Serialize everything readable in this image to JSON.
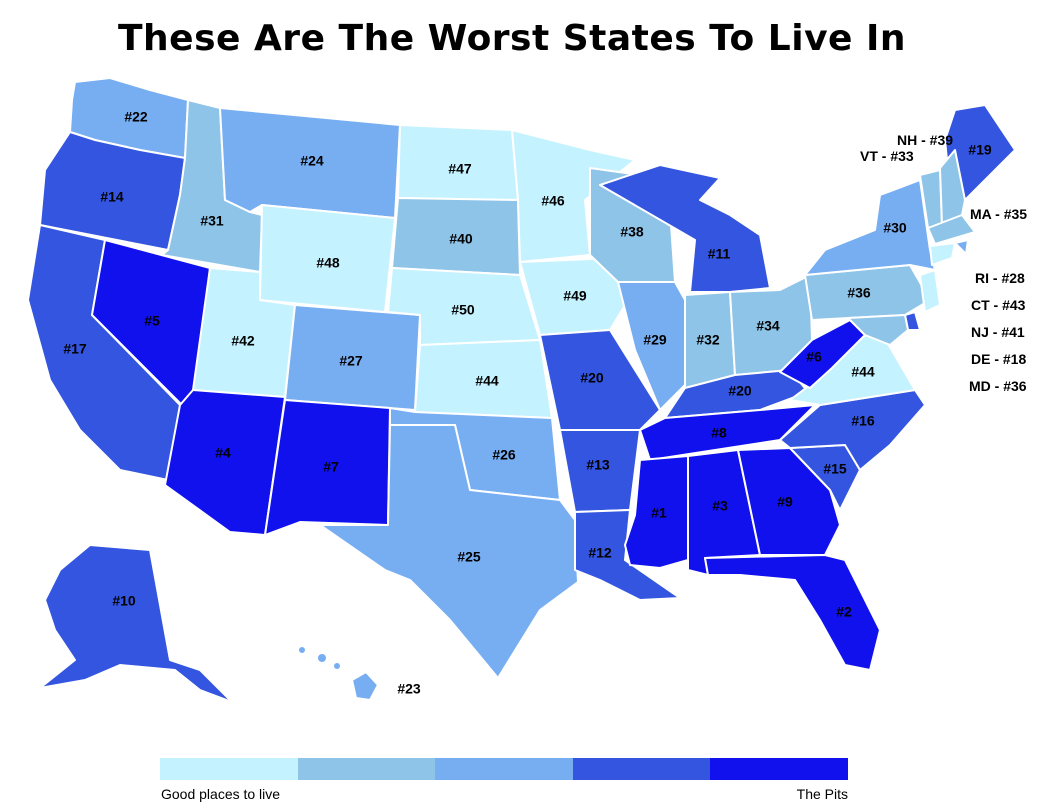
{
  "title": "These Are The Worst States To Live In",
  "colors": {
    "tier1": "#c4f2ff",
    "tier2": "#8ec4e8",
    "tier3": "#77aef2",
    "tier4": "#3355e0",
    "tier5": "#1111ee"
  },
  "states": [
    {
      "name": "WA",
      "rank": 22,
      "tier": 3
    },
    {
      "name": "OR",
      "rank": 14,
      "tier": 4
    },
    {
      "name": "CA",
      "rank": 17,
      "tier": 4
    },
    {
      "name": "NV",
      "rank": 5,
      "tier": 5
    },
    {
      "name": "ID",
      "rank": 31,
      "tier": 2
    },
    {
      "name": "MT",
      "rank": 24,
      "tier": 3
    },
    {
      "name": "WY",
      "rank": 48,
      "tier": 1
    },
    {
      "name": "UT",
      "rank": 42,
      "tier": 1
    },
    {
      "name": "AZ",
      "rank": 4,
      "tier": 5
    },
    {
      "name": "CO",
      "rank": 27,
      "tier": 3
    },
    {
      "name": "NM",
      "rank": 7,
      "tier": 5
    },
    {
      "name": "ND",
      "rank": 47,
      "tier": 1
    },
    {
      "name": "SD",
      "rank": 40,
      "tier": 2
    },
    {
      "name": "NE",
      "rank": 50,
      "tier": 1
    },
    {
      "name": "KS",
      "rank": 44,
      "tier": 1
    },
    {
      "name": "OK",
      "rank": 26,
      "tier": 3
    },
    {
      "name": "TX",
      "rank": 25,
      "tier": 3
    },
    {
      "name": "MN",
      "rank": 46,
      "tier": 1
    },
    {
      "name": "IA",
      "rank": 49,
      "tier": 1
    },
    {
      "name": "MO",
      "rank": 20,
      "tier": 4
    },
    {
      "name": "AR",
      "rank": 13,
      "tier": 4
    },
    {
      "name": "LA",
      "rank": 12,
      "tier": 4
    },
    {
      "name": "WI",
      "rank": 38,
      "tier": 2
    },
    {
      "name": "IL",
      "rank": 29,
      "tier": 3
    },
    {
      "name": "MI",
      "rank": 11,
      "tier": 4
    },
    {
      "name": "IN",
      "rank": 32,
      "tier": 2
    },
    {
      "name": "OH",
      "rank": 34,
      "tier": 2
    },
    {
      "name": "KY",
      "rank": 20,
      "tier": 4
    },
    {
      "name": "TN",
      "rank": 8,
      "tier": 5
    },
    {
      "name": "MS",
      "rank": 1,
      "tier": 5
    },
    {
      "name": "AL",
      "rank": 3,
      "tier": 5
    },
    {
      "name": "GA",
      "rank": 9,
      "tier": 5
    },
    {
      "name": "FL",
      "rank": 2,
      "tier": 5
    },
    {
      "name": "SC",
      "rank": 15,
      "tier": 4
    },
    {
      "name": "NC",
      "rank": 16,
      "tier": 4
    },
    {
      "name": "VA",
      "rank": 44,
      "tier": 1
    },
    {
      "name": "WV",
      "rank": 6,
      "tier": 5
    },
    {
      "name": "PA",
      "rank": 36,
      "tier": 2
    },
    {
      "name": "NY",
      "rank": 30,
      "tier": 3
    },
    {
      "name": "ME",
      "rank": 19,
      "tier": 4
    },
    {
      "name": "VT",
      "rank": 33,
      "tier": 2
    },
    {
      "name": "NH",
      "rank": 39,
      "tier": 2
    },
    {
      "name": "MA",
      "rank": 35,
      "tier": 2
    },
    {
      "name": "RI",
      "rank": 28,
      "tier": 3
    },
    {
      "name": "CT",
      "rank": 43,
      "tier": 1
    },
    {
      "name": "NJ",
      "rank": 41,
      "tier": 1
    },
    {
      "name": "DE",
      "rank": 18,
      "tier": 4
    },
    {
      "name": "MD",
      "rank": 36,
      "tier": 2
    },
    {
      "name": "AK",
      "rank": 10,
      "tier": 4
    },
    {
      "name": "HI",
      "rank": 23,
      "tier": 3
    }
  ],
  "callouts": {
    "nh": "NH - #39",
    "vt": "VT - #33",
    "ma": "MA - #35",
    "ri": "RI - #28",
    "ct": "CT - #43",
    "nj": "NJ - #41",
    "de": "DE - #18",
    "md": "MD - #36"
  },
  "legend": {
    "low_label": "Good places to live",
    "high_label": "The Pits"
  }
}
